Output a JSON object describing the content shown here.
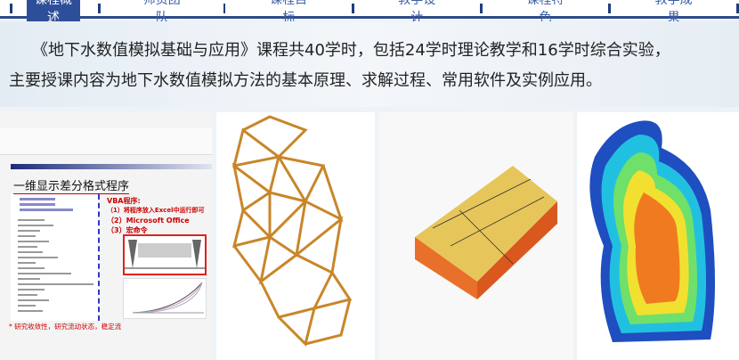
{
  "nav": {
    "tabs": [
      {
        "label": "课程概述",
        "active": true
      },
      {
        "label": "师资团队"
      },
      {
        "label": "课程目标"
      },
      {
        "label": "教学设计"
      },
      {
        "label": "课程特色"
      },
      {
        "label": "教学成果"
      }
    ],
    "accent": "#2d4f99"
  },
  "intro": {
    "line1": "《地下水数值模拟基础与应用》课程共40学时，包括24学时理论教学和16学时综合实验，",
    "line2": "主要授课内容为地下水数值模拟方法的基本原理、求解过程、常用软件及实例应用。"
  },
  "slide": {
    "title": "一维显示差分格式程序",
    "vba_title": "VBA程序:",
    "vba_items": [
      "（1）将程序放入Excel中运行即可",
      "（2）Microsoft Office",
      "（3）宏命令"
    ],
    "caption": "* 研究收敛性，研究流动状态，稳定流"
  }
}
